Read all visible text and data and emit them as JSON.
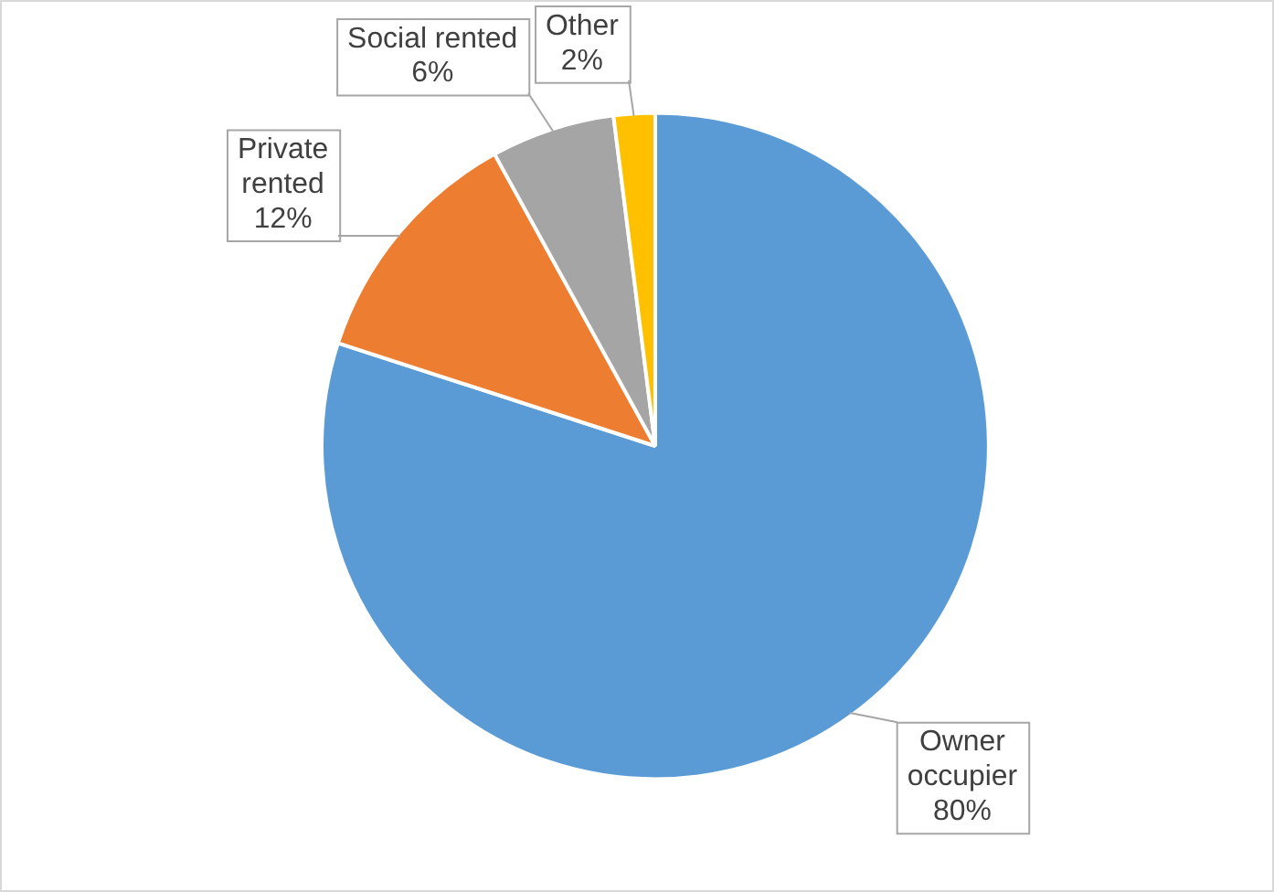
{
  "chart_data": {
    "type": "pie",
    "categories": [
      "Owner occupier",
      "Private rented",
      "Social rented",
      "Other"
    ],
    "values": [
      80,
      12,
      6,
      2
    ],
    "colors": [
      "#5b9bd5",
      "#ed7d31",
      "#a5a5a5",
      "#ffc000"
    ],
    "value_labels": [
      "80%",
      "12%",
      "6%",
      "2%"
    ],
    "legend": false
  }
}
